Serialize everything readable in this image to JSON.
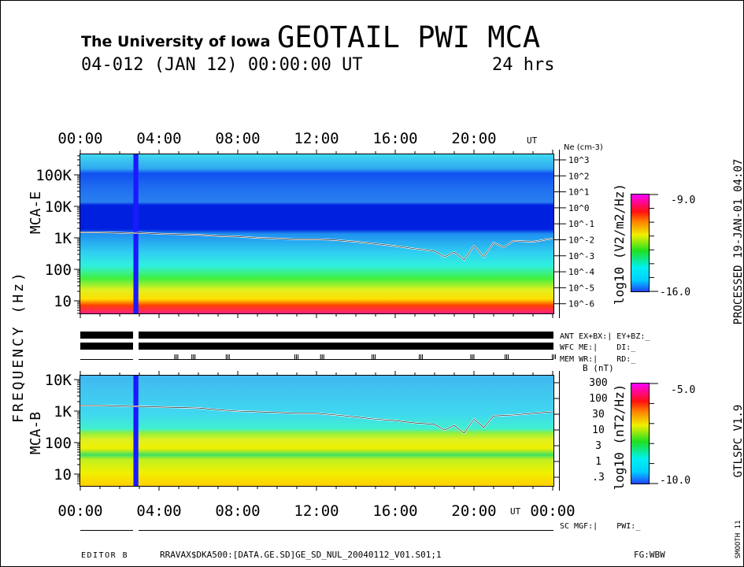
{
  "header": {
    "institution": "The University of Iowa",
    "title": "GEOTAIL PWI MCA",
    "date_line": "04-012 (JAN 12) 00:00:00 UT",
    "duration": "24 hrs"
  },
  "side_labels": {
    "frequency": "FREQUENCY (Hz)",
    "mca_e": "MCA-E",
    "mca_b": "MCA-B",
    "processed": "PROCESSED 19-JAN-01  04:07",
    "version": "GTLSPC   V1.9",
    "smooth": "SMOOTH 11"
  },
  "status": {
    "ant": "ANT EX+BX:| EY+BZ:_",
    "wfc": "WFC ME:|    DI:_",
    "mem": "MEM WR:|    RD:_",
    "sc": "SC MGF:|    PWI:_"
  },
  "footer": {
    "editor": "EDITOR B",
    "file": "RRAVAX$DKA500:[DATA.GE.SD]GE_SD_NUL_20040112_V01.S01;1",
    "fg": "FG:WBW"
  },
  "chart_data": [
    {
      "type": "heatmap",
      "name": "MCA-E",
      "x_label": "UT",
      "x_range_hours": [
        0,
        24
      ],
      "x_ticks": [
        "00:00",
        "04:00",
        "08:00",
        "12:00",
        "16:00",
        "20:00"
      ],
      "x_unit_label": "UT",
      "y_label": "FREQUENCY (Hz)",
      "y_scale": "log",
      "y_ticks": [
        "10",
        "100",
        "1K",
        "10K",
        "100K"
      ],
      "y_tick_values": [
        10,
        100,
        1000,
        10000,
        100000
      ],
      "right_axis_label": "Ne (cm-3)",
      "right_axis_ticks": [
        "10^3",
        "10^2",
        "10^1",
        "10^0",
        "10^-1",
        "10^-2",
        "10^-3",
        "10^-4",
        "10^-5",
        "10^-6"
      ],
      "colorbar_label": "log10 (V2/m2/Hz)",
      "colorbar_range": [
        -16.0,
        -9.0
      ],
      "colorbar_ticks": [
        "-9.0",
        "-16.0"
      ],
      "data_gap_hours": [
        2.7,
        2.95
      ],
      "trace": {
        "name": "plasma frequency line",
        "hours": [
          0,
          1,
          2,
          2.6,
          3,
          4,
          5,
          6,
          7,
          8,
          9,
          10,
          11,
          12,
          13,
          14,
          15,
          16,
          17,
          18,
          18.5,
          19,
          19.5,
          20,
          20.5,
          21,
          21.5,
          22,
          23,
          24
        ],
        "hz": [
          1500,
          1500,
          1450,
          1400,
          1450,
          1350,
          1300,
          1250,
          1150,
          1100,
          1000,
          950,
          900,
          900,
          850,
          750,
          650,
          550,
          450,
          380,
          250,
          350,
          200,
          550,
          250,
          700,
          500,
          800,
          750,
          950
        ]
      }
    },
    {
      "type": "heatmap",
      "name": "MCA-B",
      "x_label": "UT",
      "x_range_hours": [
        0,
        24
      ],
      "x_ticks": [
        "00:00",
        "04:00",
        "08:00",
        "12:00",
        "16:00",
        "20:00",
        "00:00"
      ],
      "x_unit_label": "UT",
      "y_label": "FREQUENCY (Hz)",
      "y_scale": "log",
      "y_ticks": [
        "10",
        "100",
        "1K",
        "10K"
      ],
      "y_tick_values": [
        10,
        100,
        1000,
        10000
      ],
      "right_axis_label": "B (nT)",
      "right_axis_ticks": [
        "300",
        "100",
        "30",
        "10",
        "3",
        "1",
        ".3"
      ],
      "colorbar_label": "log10 (nT2/Hz)",
      "colorbar_range": [
        -10.0,
        -5.0
      ],
      "colorbar_ticks": [
        "-5.0",
        "-10.0"
      ],
      "data_gap_hours": [
        2.7,
        2.95
      ],
      "trace": {
        "name": "cyclotron frequency line",
        "hours": [
          0,
          1,
          2,
          3,
          4,
          5,
          6,
          7,
          8,
          9,
          10,
          11,
          12,
          13,
          14,
          15,
          16,
          17,
          18,
          18.5,
          19,
          19.5,
          20,
          20.5,
          21,
          22,
          23,
          24
        ],
        "hz": [
          1500,
          1500,
          1450,
          1400,
          1350,
          1300,
          1250,
          1100,
          1000,
          950,
          900,
          850,
          850,
          750,
          650,
          550,
          500,
          420,
          380,
          250,
          350,
          200,
          550,
          300,
          700,
          750,
          850,
          950
        ]
      }
    }
  ]
}
